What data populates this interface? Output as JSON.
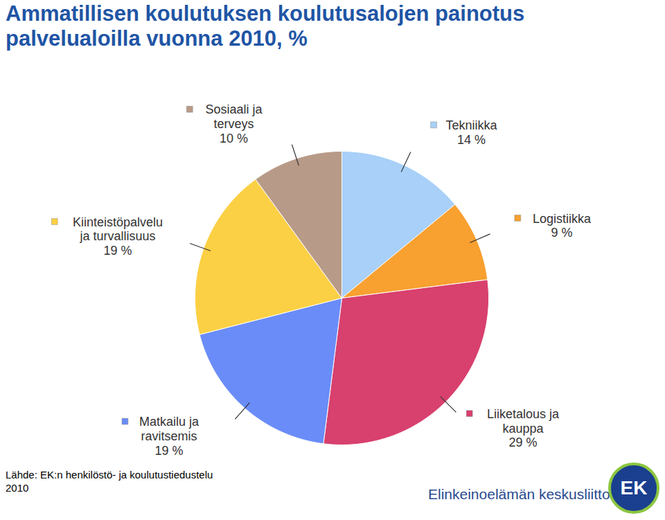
{
  "chart_data": {
    "type": "pie",
    "title": "Ammatillisen koulutuksen koulutusalojen painotus\npalvelualoilla vuonna 2010, %",
    "categories": [
      "Tekniikka",
      "Logistiikka",
      "Liiketalous ja\nkauppa",
      "Matkailu ja\nravitsemis",
      "Kiinteistöpalvelu\nja turvallisuus",
      "Sosiaali ja\nterveys"
    ],
    "values": [
      14,
      9,
      29,
      19,
      19,
      10
    ],
    "value_labels": [
      "14 %",
      "9 %",
      "29 %",
      "19 %",
      "19 %",
      "10 %"
    ],
    "colors": [
      "#a8d0f8",
      "#f8a030",
      "#d8406e",
      "#6a8cf8",
      "#fcd044",
      "#b89a88"
    ],
    "data_labels": true
  },
  "footer": {
    "source": "Lähde: EK:n henkilöstö- ja koulutustiedustelu\n2010",
    "organization": "Elinkeinoelämän keskusliitto",
    "logo": "EK"
  }
}
